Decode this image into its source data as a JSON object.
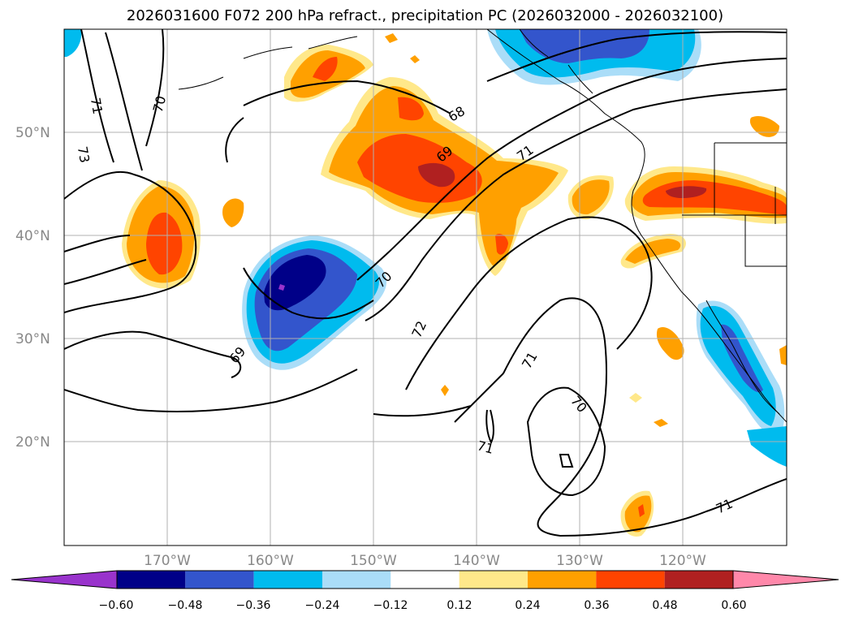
{
  "title": "2026031600 F072 200 hPa refract., precipitation PC (2026032000 - 2026032100)",
  "latitude_labels": [
    "50°N",
    "40°N",
    "30°N",
    "20°N"
  ],
  "longitude_labels": [
    "170°W",
    "160°W",
    "150°W",
    "140°W",
    "130°W",
    "120°W"
  ],
  "colorbar": {
    "tick_labels": [
      "−0.60",
      "−0.48",
      "−0.36",
      "−0.24",
      "−0.12",
      "0.12",
      "0.24",
      "0.36",
      "0.48",
      "0.60"
    ],
    "colors": [
      "#9933cc",
      "#000088",
      "#3355cc",
      "#00bbee",
      "#aaddf8",
      "#ffffff",
      "#ffe88a",
      "#ffa000",
      "#ff4400",
      "#b02020",
      "#ff88aa"
    ]
  },
  "contour_labels": [
    "73",
    "71",
    "70",
    "68",
    "69",
    "71",
    "70",
    "72",
    "69",
    "71",
    "70",
    "71",
    "71"
  ]
}
